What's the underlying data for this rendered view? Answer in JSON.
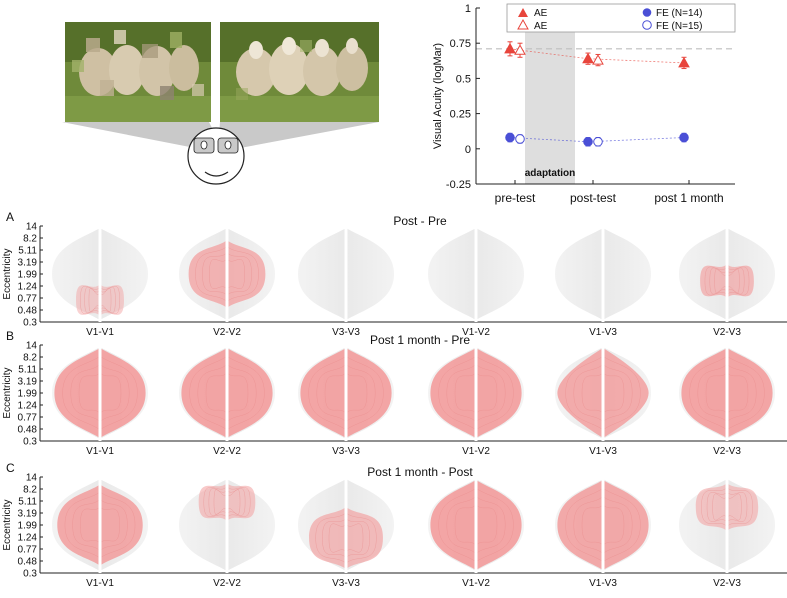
{
  "illustration": {
    "description_icons": [
      "sheep-photo-blurred-icon",
      "sheep-photo-sharp-icon",
      "observer-face-icon"
    ]
  },
  "acuity_chart": {
    "ylabel": "Visual Acuity (logMar)",
    "yticks": [
      "1",
      "0.75",
      "0.5",
      "0.25",
      "0",
      "-0.25"
    ],
    "xticks": [
      "pre-test",
      "post-test",
      "post 1 month"
    ],
    "adaptation_label": "adaptation",
    "legend": {
      "ae_filled": "AE",
      "ae_open": "AE",
      "fe_filled": "FE (N=14)",
      "fe_open": "FE (N=15)"
    },
    "colors": {
      "ae": "#e8453c",
      "fe": "#4a4fd6",
      "shade": "#dedede",
      "ref": "#bdbdbd"
    }
  },
  "chart_data": {
    "type": "scatter",
    "ylabel": "Visual Acuity (logMar)",
    "ylim": [
      -0.25,
      1
    ],
    "categories": [
      "pre-test",
      "post-test",
      "post 1 month"
    ],
    "reference_line": 0.71,
    "series": [
      {
        "name": "AE",
        "marker": "filled-triangle",
        "x": [
          "pre-test",
          "post-test",
          "post 1 month"
        ],
        "values": [
          0.71,
          0.64,
          0.61
        ],
        "err": [
          0.05,
          0.04,
          0.04
        ]
      },
      {
        "name": "AE",
        "marker": "open-triangle",
        "x": [
          "pre-test",
          "post-test"
        ],
        "values": [
          0.7,
          0.63
        ],
        "err": [
          0.05,
          0.04
        ]
      },
      {
        "name": "FE (N=14)",
        "marker": "filled-circle",
        "x": [
          "pre-test",
          "post-test",
          "post 1 month"
        ],
        "values": [
          0.08,
          0.05,
          0.08
        ],
        "err": [
          0.03,
          0.03,
          0.03
        ]
      },
      {
        "name": "FE (N=15)",
        "marker": "open-circle",
        "x": [
          "pre-test",
          "post-test"
        ],
        "values": [
          0.07,
          0.05
        ],
        "err": [
          0.03,
          0.03
        ]
      }
    ]
  },
  "connectivity": {
    "ylabel": "Eccentricity",
    "yticks": [
      "14",
      "8.2",
      "5.11",
      "3.19",
      "1.99",
      "1.24",
      "0.77",
      "0.48",
      "0.3"
    ],
    "columns": [
      "V1-V1",
      "V2-V2",
      "V3-V3",
      "V1-V2",
      "V1-V3",
      "V2-V3"
    ],
    "rows": [
      {
        "letter": "A",
        "title": "Post - Pre",
        "intensity": [
          0.2,
          0.7,
          0.0,
          0.0,
          0.0,
          0.55
        ],
        "coverage": [
          0.25,
          0.75,
          0.0,
          0.0,
          0.0,
          0.35
        ]
      },
      {
        "letter": "B",
        "title": "Post 1 month - Pre",
        "intensity": [
          1.0,
          1.0,
          1.0,
          1.0,
          0.85,
          1.0
        ],
        "coverage": [
          1.0,
          1.0,
          1.0,
          1.0,
          1.0,
          1.0
        ]
      },
      {
        "letter": "C",
        "title": "Post 1 month - Post",
        "intensity": [
          0.9,
          0.35,
          0.55,
          1.0,
          0.9,
          0.35
        ],
        "coverage": [
          0.9,
          0.4,
          0.7,
          1.0,
          1.0,
          0.5
        ]
      }
    ],
    "colors": {
      "fill": "#f2a0a0",
      "ghost": "#eeeeee",
      "midline": "#ffffff"
    }
  }
}
